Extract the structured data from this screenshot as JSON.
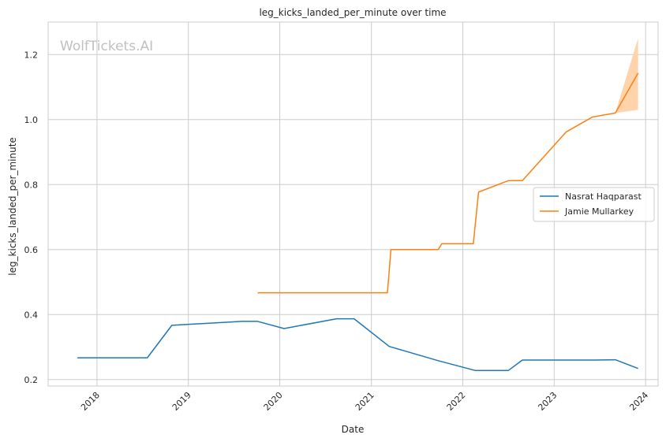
{
  "chart_data": {
    "type": "line",
    "title": "leg_kicks_landed_per_minute over time",
    "xlabel": "Date",
    "ylabel": "leg_kicks_landed_per_minute",
    "watermark": "WolfTickets.AI",
    "x_is_date": true,
    "xlim": [
      "2017-06-20",
      "2024-02-20"
    ],
    "ylim": [
      0.18,
      1.3
    ],
    "x_ticks": [
      "2018-01-01",
      "2019-01-01",
      "2020-01-01",
      "2021-01-01",
      "2022-01-01",
      "2023-01-01",
      "2024-01-01"
    ],
    "x_tick_labels": [
      "2018",
      "2019",
      "2020",
      "2021",
      "2022",
      "2023",
      "2024"
    ],
    "y_ticks": [
      0.2,
      0.4,
      0.6,
      0.8,
      1.0,
      1.2
    ],
    "y_tick_labels": [
      "0.2",
      "0.4",
      "0.6",
      "0.8",
      "1.0",
      "1.2"
    ],
    "grid": true,
    "legend_position": "right",
    "series": [
      {
        "name": "Nasrat Haqparast",
        "color": "#1f77b4",
        "points": [
          [
            "2017-10-15",
            0.267
          ],
          [
            "2018-07-21",
            0.267
          ],
          [
            "2018-10-27",
            0.367
          ],
          [
            "2019-08-03",
            0.379
          ],
          [
            "2019-10-05",
            0.379
          ],
          [
            "2020-01-18",
            0.357
          ],
          [
            "2020-08-15",
            0.387
          ],
          [
            "2020-10-24",
            0.387
          ],
          [
            "2021-03-13",
            0.302
          ],
          [
            "2021-09-25",
            0.258
          ],
          [
            "2022-02-19",
            0.228
          ],
          [
            "2022-07-02",
            0.228
          ],
          [
            "2022-08-27",
            0.26
          ],
          [
            "2023-06-10",
            0.26
          ],
          [
            "2023-09-02",
            0.261
          ],
          [
            "2023-12-02",
            0.234
          ]
        ]
      },
      {
        "name": "Jamie Mullarkey",
        "color": "#ff7f0e",
        "band_color": "#ffcfa3",
        "points": [
          [
            "2019-10-05",
            0.467
          ],
          [
            "2021-03-06",
            0.467
          ],
          [
            "2021-03-20",
            0.6
          ],
          [
            "2021-09-25",
            0.6
          ],
          [
            "2021-10-09",
            0.618
          ],
          [
            "2022-02-12",
            0.618
          ],
          [
            "2022-03-05",
            0.777
          ],
          [
            "2022-07-02",
            0.812
          ],
          [
            "2022-08-27",
            0.812
          ],
          [
            "2023-02-18",
            0.962
          ],
          [
            "2023-06-03",
            1.008
          ],
          [
            "2023-09-02",
            1.02
          ],
          [
            "2023-12-02",
            1.143
          ]
        ],
        "band": [
          [
            "2023-09-02",
            1.02,
            1.02
          ],
          [
            "2023-12-02",
            1.03,
            1.25
          ]
        ]
      }
    ]
  }
}
